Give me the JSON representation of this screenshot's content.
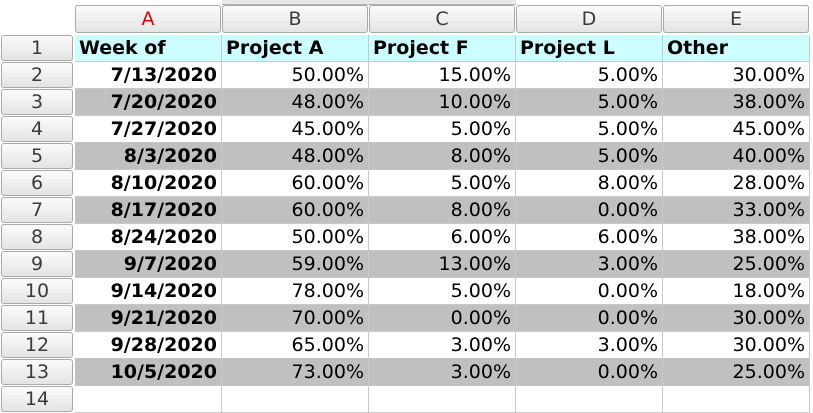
{
  "columns": [
    "A",
    "B",
    "C",
    "D",
    "E"
  ],
  "active_column": "A",
  "row_numbers": [
    "1",
    "2",
    "3",
    "4",
    "5",
    "6",
    "7",
    "8",
    "9",
    "10",
    "11",
    "12",
    "13",
    "14"
  ],
  "header": [
    "Week of",
    "Project A",
    "Project F",
    "Project L",
    "Other"
  ],
  "rows": [
    [
      "7/13/2020",
      "50.00%",
      "15.00%",
      "5.00%",
      "30.00%"
    ],
    [
      "7/20/2020",
      "48.00%",
      "10.00%",
      "5.00%",
      "38.00%"
    ],
    [
      "7/27/2020",
      "45.00%",
      "5.00%",
      "5.00%",
      "45.00%"
    ],
    [
      "8/3/2020",
      "48.00%",
      "8.00%",
      "5.00%",
      "40.00%"
    ],
    [
      "8/10/2020",
      "60.00%",
      "5.00%",
      "8.00%",
      "28.00%"
    ],
    [
      "8/17/2020",
      "60.00%",
      "8.00%",
      "0.00%",
      "33.00%"
    ],
    [
      "8/24/2020",
      "50.00%",
      "6.00%",
      "6.00%",
      "38.00%"
    ],
    [
      "9/7/2020",
      "59.00%",
      "13.00%",
      "3.00%",
      "25.00%"
    ],
    [
      "9/14/2020",
      "78.00%",
      "5.00%",
      "0.00%",
      "18.00%"
    ],
    [
      "9/21/2020",
      "70.00%",
      "0.00%",
      "0.00%",
      "30.00%"
    ],
    [
      "9/28/2020",
      "65.00%",
      "3.00%",
      "3.00%",
      "30.00%"
    ],
    [
      "10/5/2020",
      "73.00%",
      "3.00%",
      "0.00%",
      "25.00%"
    ]
  ],
  "colors": {
    "header_fill": "#ccffff",
    "band_fill": "#c0c0c0",
    "active_header_text": "#e00000"
  }
}
